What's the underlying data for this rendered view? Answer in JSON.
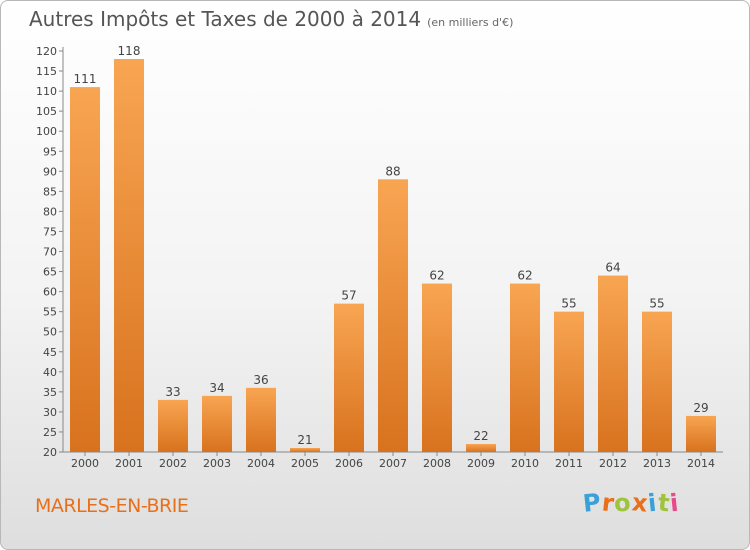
{
  "header": {
    "title": "Autres Impôts et Taxes de 2000 à 2014",
    "subtitle": "(en milliers d'€)"
  },
  "footer": {
    "town": "MARLES-EN-BRIE",
    "logo": "Proxiti"
  },
  "colors": {
    "bar_top": "#f8a552",
    "bar_bottom": "#d8721e",
    "town": "#e8701a",
    "logo": [
      "#3aa0d8",
      "#e8701a",
      "#9fc33a",
      "#e8701a",
      "#3aa0d8",
      "#9fc33a",
      "#e84a8a"
    ]
  },
  "chart_data": {
    "type": "bar",
    "categories": [
      "2000",
      "2001",
      "2002",
      "2003",
      "2004",
      "2005",
      "2006",
      "2007",
      "2008",
      "2009",
      "2010",
      "2011",
      "2012",
      "2013",
      "2014"
    ],
    "values": [
      111,
      118,
      33,
      34,
      36,
      21,
      57,
      88,
      62,
      22,
      62,
      55,
      64,
      55,
      29
    ],
    "ylim": [
      20,
      120
    ],
    "yticks": [
      20,
      25,
      30,
      35,
      40,
      45,
      50,
      55,
      60,
      65,
      70,
      75,
      80,
      85,
      90,
      95,
      100,
      105,
      110,
      115,
      120
    ],
    "grid": false,
    "xlabel": "",
    "ylabel": ""
  }
}
